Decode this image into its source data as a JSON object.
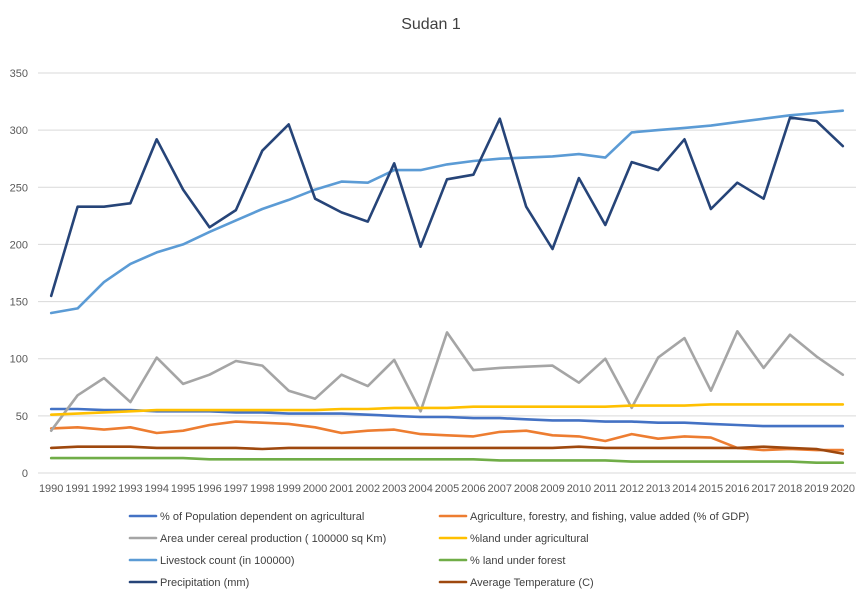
{
  "chart_data": {
    "type": "line",
    "title": "Sudan 1",
    "xlabel": "",
    "ylabel": "",
    "ylim": [
      0,
      350
    ],
    "yticks": [
      0,
      50,
      100,
      150,
      200,
      250,
      300,
      350
    ],
    "grid": "horizontal",
    "legend_position": "bottom",
    "x": [
      "1990",
      "1991",
      "1992",
      "1993",
      "1994",
      "1995",
      "1996",
      "1997",
      "1998",
      "1999",
      "2000",
      "2001",
      "2002",
      "2003",
      "2004",
      "2005",
      "2006",
      "2007",
      "2008",
      "2009",
      "2010",
      "2011",
      "2012",
      "2013",
      "2014",
      "2015",
      "2016",
      "2017",
      "2018",
      "2019",
      "2020"
    ],
    "series": [
      {
        "name": "% of Population dependent on agricultural",
        "color": "#4472c4",
        "values": [
          56,
          56,
          55,
          55,
          54,
          54,
          54,
          53,
          53,
          52,
          52,
          52,
          51,
          50,
          49,
          49,
          48,
          48,
          47,
          46,
          46,
          45,
          45,
          44,
          44,
          43,
          42,
          41,
          41,
          41,
          41
        ]
      },
      {
        "name": "Agriculture, forestry, and fishing, value added (% of GDP)",
        "color": "#ed7d31",
        "values": [
          39,
          40,
          38,
          40,
          35,
          37,
          42,
          45,
          44,
          43,
          40,
          35,
          37,
          38,
          34,
          33,
          32,
          36,
          37,
          33,
          32,
          28,
          34,
          30,
          32,
          31,
          22,
          20,
          21,
          20,
          20
        ]
      },
      {
        "name": "Area under cereal production ( 100000 sq Km)",
        "color": "#a5a5a5",
        "values": [
          37,
          68,
          83,
          62,
          101,
          78,
          86,
          98,
          94,
          72,
          65,
          86,
          76,
          99,
          54,
          123,
          90,
          92,
          93,
          94,
          79,
          100,
          57,
          101,
          118,
          72,
          124,
          92,
          121,
          102,
          86
        ]
      },
      {
        "name": "%land under agricultural",
        "color": "#ffc000",
        "values": [
          51,
          52,
          53,
          54,
          55,
          55,
          55,
          55,
          55,
          55,
          55,
          56,
          56,
          57,
          57,
          57,
          58,
          58,
          58,
          58,
          58,
          58,
          59,
          59,
          59,
          60,
          60,
          60,
          60,
          60,
          60
        ]
      },
      {
        "name": "Livestock count (in 100000)",
        "color": "#5b9bd5",
        "values": [
          140,
          144,
          167,
          183,
          193,
          200,
          211,
          221,
          231,
          239,
          248,
          255,
          254,
          265,
          265,
          270,
          273,
          275,
          276,
          277,
          279,
          276,
          298,
          300,
          302,
          304,
          307,
          310,
          313,
          315,
          317
        ]
      },
      {
        "name": "% land under forest",
        "color": "#70ad47",
        "values": [
          13,
          13,
          13,
          13,
          13,
          13,
          12,
          12,
          12,
          12,
          12,
          12,
          12,
          12,
          12,
          12,
          12,
          11,
          11,
          11,
          11,
          11,
          10,
          10,
          10,
          10,
          10,
          10,
          10,
          9,
          9
        ]
      },
      {
        "name": "Precipitation (mm)",
        "color": "#264478",
        "values": [
          155,
          233,
          233,
          236,
          292,
          248,
          215,
          230,
          282,
          305,
          240,
          228,
          220,
          271,
          198,
          257,
          261,
          310,
          233,
          196,
          258,
          217,
          272,
          265,
          292,
          231,
          254,
          240,
          311,
          308,
          286
        ]
      },
      {
        "name": "Average Temperature (C)",
        "color": "#9e480e",
        "values": [
          22,
          23,
          23,
          23,
          22,
          22,
          22,
          22,
          21,
          22,
          22,
          22,
          22,
          22,
          22,
          22,
          22,
          22,
          22,
          22,
          23,
          22,
          22,
          22,
          22,
          22,
          22,
          23,
          22,
          21,
          17
        ]
      }
    ]
  }
}
